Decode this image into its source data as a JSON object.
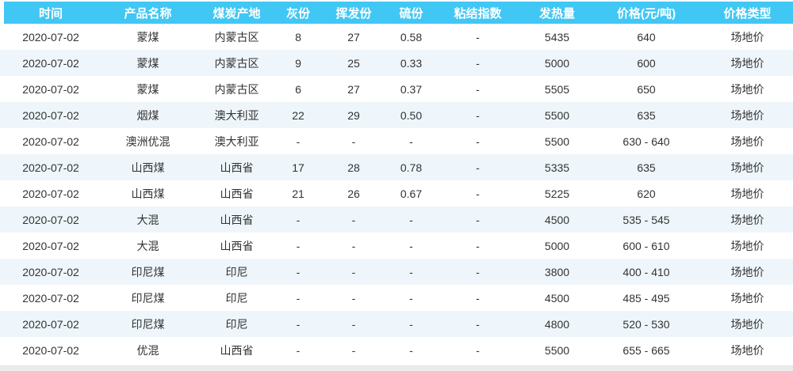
{
  "colors": {
    "header_bg": "#41c7f4",
    "header_text": "#ffffff",
    "row_bg": "#ffffff",
    "row_alt_bg": "#eef6fb",
    "cell_text": "#333333",
    "bottom_strip_bg": "#ececec",
    "bottom_strip_line": "#e0e0e0"
  },
  "table": {
    "columns": [
      {
        "key": "time",
        "label": "时间",
        "width": "12.8%"
      },
      {
        "key": "product",
        "label": "产品名称",
        "width": "11.7%"
      },
      {
        "key": "origin",
        "label": "煤炭产地",
        "width": "10.7%"
      },
      {
        "key": "ash",
        "label": "灰份",
        "width": "4.8%"
      },
      {
        "key": "volatile",
        "label": "挥发份",
        "width": "9.2%"
      },
      {
        "key": "sulfur",
        "label": "硫份",
        "width": "5.3%"
      },
      {
        "key": "bond",
        "label": "粘结指数",
        "width": "11.5%"
      },
      {
        "key": "calorific",
        "label": "发热量",
        "width": "8.5%"
      },
      {
        "key": "price",
        "label": "价格(元/吨)",
        "width": "14.0%"
      },
      {
        "key": "type",
        "label": "价格类型",
        "width": "11.5%"
      }
    ],
    "rows": [
      {
        "time": "2020-07-02",
        "product": "蒙煤",
        "origin": "内蒙古区",
        "ash": "8",
        "volatile": "27",
        "sulfur": "0.58",
        "bond": "-",
        "calorific": "5435",
        "price": "640",
        "type": "场地价"
      },
      {
        "time": "2020-07-02",
        "product": "蒙煤",
        "origin": "内蒙古区",
        "ash": "9",
        "volatile": "25",
        "sulfur": "0.33",
        "bond": "-",
        "calorific": "5000",
        "price": "600",
        "type": "场地价"
      },
      {
        "time": "2020-07-02",
        "product": "蒙煤",
        "origin": "内蒙古区",
        "ash": "6",
        "volatile": "27",
        "sulfur": "0.37",
        "bond": "-",
        "calorific": "5505",
        "price": "650",
        "type": "场地价"
      },
      {
        "time": "2020-07-02",
        "product": "烟煤",
        "origin": "澳大利亚",
        "ash": "22",
        "volatile": "29",
        "sulfur": "0.50",
        "bond": "-",
        "calorific": "5500",
        "price": "635",
        "type": "场地价"
      },
      {
        "time": "2020-07-02",
        "product": "澳洲优混",
        "origin": "澳大利亚",
        "ash": "-",
        "volatile": "-",
        "sulfur": "-",
        "bond": "-",
        "calorific": "5500",
        "price": "630 - 640",
        "type": "场地价"
      },
      {
        "time": "2020-07-02",
        "product": "山西煤",
        "origin": "山西省",
        "ash": "17",
        "volatile": "28",
        "sulfur": "0.78",
        "bond": "-",
        "calorific": "5335",
        "price": "635",
        "type": "场地价"
      },
      {
        "time": "2020-07-02",
        "product": "山西煤",
        "origin": "山西省",
        "ash": "21",
        "volatile": "26",
        "sulfur": "0.67",
        "bond": "-",
        "calorific": "5225",
        "price": "620",
        "type": "场地价"
      },
      {
        "time": "2020-07-02",
        "product": "大混",
        "origin": "山西省",
        "ash": "-",
        "volatile": "-",
        "sulfur": "-",
        "bond": "-",
        "calorific": "4500",
        "price": "535 - 545",
        "type": "场地价"
      },
      {
        "time": "2020-07-02",
        "product": "大混",
        "origin": "山西省",
        "ash": "-",
        "volatile": "-",
        "sulfur": "-",
        "bond": "-",
        "calorific": "5000",
        "price": "600 - 610",
        "type": "场地价"
      },
      {
        "time": "2020-07-02",
        "product": "印尼煤",
        "origin": "印尼",
        "ash": "-",
        "volatile": "-",
        "sulfur": "-",
        "bond": "-",
        "calorific": "3800",
        "price": "400 - 410",
        "type": "场地价"
      },
      {
        "time": "2020-07-02",
        "product": "印尼煤",
        "origin": "印尼",
        "ash": "-",
        "volatile": "-",
        "sulfur": "-",
        "bond": "-",
        "calorific": "4500",
        "price": "485 - 495",
        "type": "场地价"
      },
      {
        "time": "2020-07-02",
        "product": "印尼煤",
        "origin": "印尼",
        "ash": "-",
        "volatile": "-",
        "sulfur": "-",
        "bond": "-",
        "calorific": "4800",
        "price": "520 - 530",
        "type": "场地价"
      },
      {
        "time": "2020-07-02",
        "product": "优混",
        "origin": "山西省",
        "ash": "-",
        "volatile": "-",
        "sulfur": "-",
        "bond": "-",
        "calorific": "5500",
        "price": "655 - 665",
        "type": "场地价"
      }
    ]
  }
}
